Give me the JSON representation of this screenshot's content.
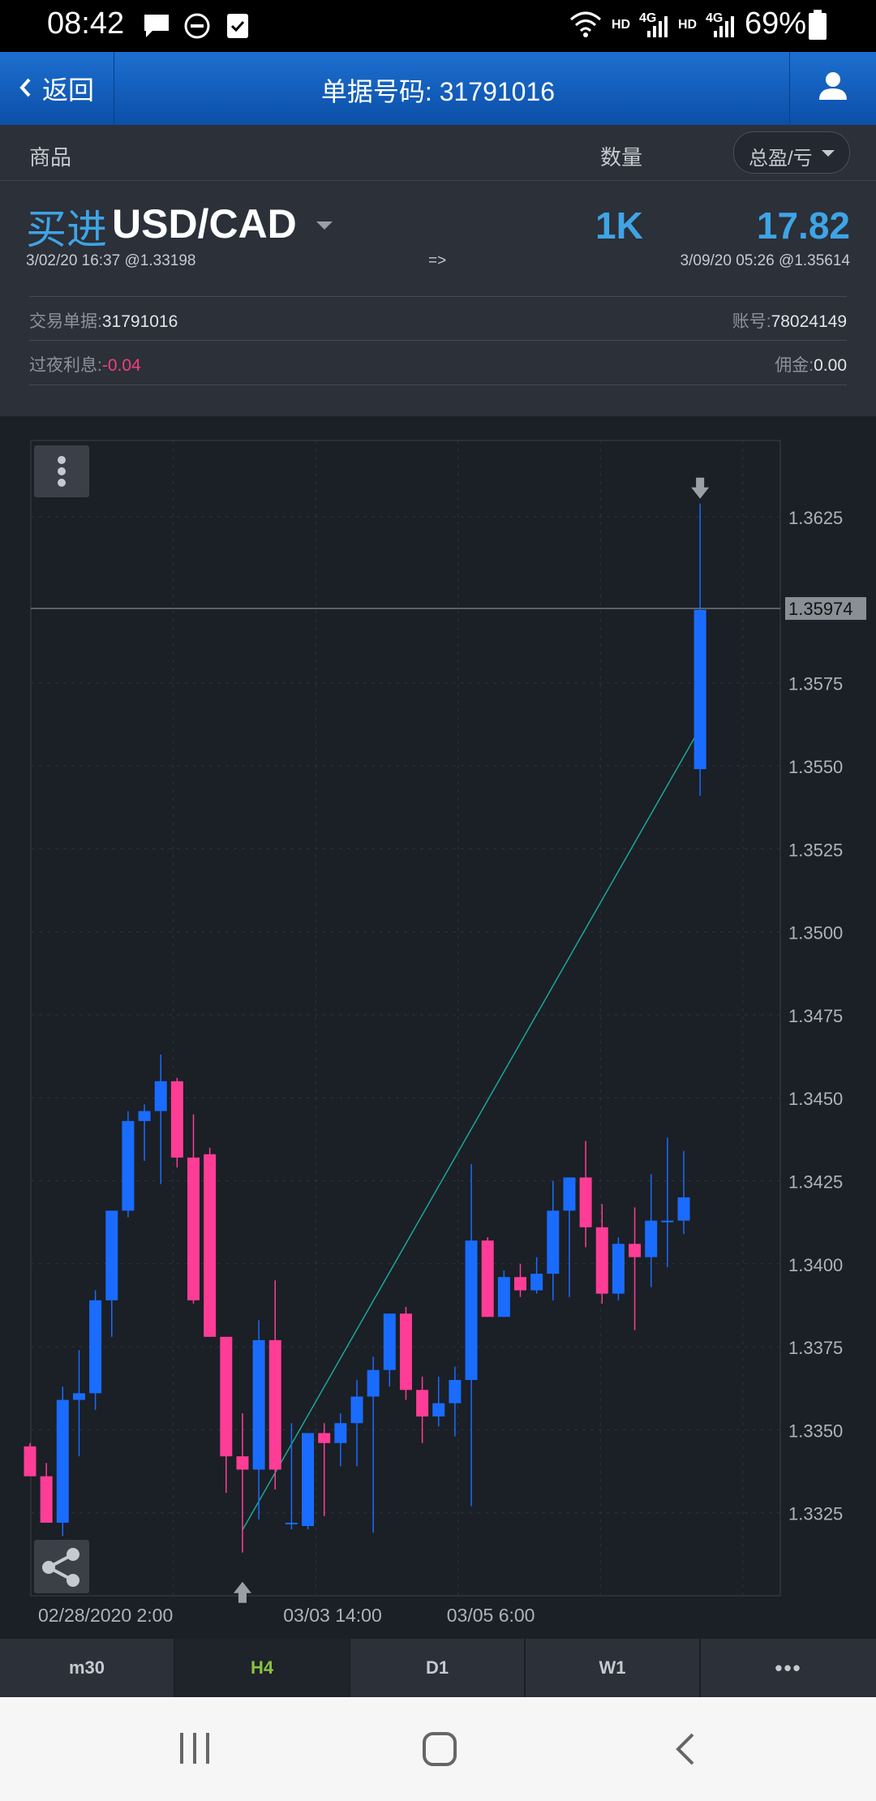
{
  "status_bar": {
    "time": "08:42",
    "net1": "HD",
    "net1_type": "4G",
    "net2": "HD",
    "net2_type": "4G",
    "battery": "69%"
  },
  "header": {
    "back_label": "返回",
    "title": "单据号码: 31791016",
    "user_icon": "user-icon"
  },
  "columns": {
    "product": "商品",
    "quantity": "数量",
    "pl_select": "总盈/亏"
  },
  "position": {
    "side": "买进",
    "symbol": "USD/CAD",
    "quantity": "1K",
    "pnl": "17.82",
    "open_info": "3/02/20 16:37 @1.33198",
    "arrow": "=>",
    "close_info": "3/09/20 05:26 @1.35614",
    "order_label": "交易单据:",
    "order_value": "31791016",
    "account_label": "账号:",
    "account_value": "78024149",
    "swap_label": "过夜利息:",
    "swap_value": "-0.04",
    "commission_label": "佣金:",
    "commission_value": "0.00"
  },
  "colors": {
    "bull": "#1a6cff",
    "bear": "#ff3d96",
    "accent": "#3fa4e6",
    "active_tf": "#8bc43f"
  },
  "chart_data": {
    "type": "candlestick",
    "symbol": "USD/CAD",
    "timeframe": "H4",
    "ylim": [
      1.33,
      1.3648
    ],
    "y_ticks": [
      "1.3625",
      "1.3575",
      "1.3550",
      "1.3525",
      "1.3500",
      "1.3475",
      "1.3450",
      "1.3425",
      "1.3400",
      "1.3375",
      "1.3350",
      "1.3325"
    ],
    "current_price": "1.35974",
    "x_labels": [
      {
        "index": 0,
        "label": "02/28/2020 2:00"
      },
      {
        "index": 15,
        "label": "03/03 14:00"
      },
      {
        "index": 25,
        "label": "03/05 6:00"
      }
    ],
    "candles": [
      {
        "o": 1.3345,
        "h": 1.3346,
        "l": 1.3336,
        "c": 1.3336
      },
      {
        "o": 1.3336,
        "h": 1.334,
        "l": 1.3322,
        "c": 1.3322
      },
      {
        "o": 1.3322,
        "h": 1.3363,
        "l": 1.3318,
        "c": 1.3359
      },
      {
        "o": 1.3359,
        "h": 1.3374,
        "l": 1.3342,
        "c": 1.3361
      },
      {
        "o": 1.3361,
        "h": 1.3392,
        "l": 1.3356,
        "c": 1.3389
      },
      {
        "o": 1.3389,
        "h": 1.3416,
        "l": 1.3378,
        "c": 1.3416
      },
      {
        "o": 1.3416,
        "h": 1.3446,
        "l": 1.3414,
        "c": 1.3443
      },
      {
        "o": 1.3443,
        "h": 1.3448,
        "l": 1.3431,
        "c": 1.3446
      },
      {
        "o": 1.3446,
        "h": 1.3463,
        "l": 1.3424,
        "c": 1.3455
      },
      {
        "o": 1.3455,
        "h": 1.3456,
        "l": 1.3429,
        "c": 1.3432
      },
      {
        "o": 1.3432,
        "h": 1.3445,
        "l": 1.3388,
        "c": 1.3389
      },
      {
        "o": 1.3433,
        "h": 1.3435,
        "l": 1.3378,
        "c": 1.3378
      },
      {
        "o": 1.3378,
        "h": 1.3378,
        "l": 1.3331,
        "c": 1.3342
      },
      {
        "o": 1.3342,
        "h": 1.3355,
        "l": 1.3313,
        "c": 1.3338
      },
      {
        "o": 1.3338,
        "h": 1.3383,
        "l": 1.3323,
        "c": 1.3377
      },
      {
        "o": 1.3377,
        "h": 1.3395,
        "l": 1.3332,
        "c": 1.3338
      },
      {
        "o": 1.3322,
        "h": 1.3352,
        "l": 1.332,
        "c": 1.3322
      },
      {
        "o": 1.3321,
        "h": 1.3349,
        "l": 1.332,
        "c": 1.3349
      },
      {
        "o": 1.3349,
        "h": 1.3352,
        "l": 1.3324,
        "c": 1.3346
      },
      {
        "o": 1.3346,
        "h": 1.3355,
        "l": 1.3339,
        "c": 1.3352
      },
      {
        "o": 1.3352,
        "h": 1.3365,
        "l": 1.3339,
        "c": 1.336
      },
      {
        "o": 1.336,
        "h": 1.3372,
        "l": 1.3319,
        "c": 1.3368
      },
      {
        "o": 1.3368,
        "h": 1.3385,
        "l": 1.3363,
        "c": 1.3385
      },
      {
        "o": 1.3385,
        "h": 1.3387,
        "l": 1.3359,
        "c": 1.3362
      },
      {
        "o": 1.3362,
        "h": 1.3366,
        "l": 1.3346,
        "c": 1.3354
      },
      {
        "o": 1.3354,
        "h": 1.3366,
        "l": 1.3351,
        "c": 1.3358
      },
      {
        "o": 1.3358,
        "h": 1.3369,
        "l": 1.3348,
        "c": 1.3365
      },
      {
        "o": 1.3365,
        "h": 1.343,
        "l": 1.3327,
        "c": 1.3407
      },
      {
        "o": 1.3407,
        "h": 1.3408,
        "l": 1.3384,
        "c": 1.3384
      },
      {
        "o": 1.3384,
        "h": 1.3398,
        "l": 1.3384,
        "c": 1.3396
      },
      {
        "o": 1.3396,
        "h": 1.34,
        "l": 1.339,
        "c": 1.3392
      },
      {
        "o": 1.3392,
        "h": 1.3402,
        "l": 1.3391,
        "c": 1.3397
      },
      {
        "o": 1.3397,
        "h": 1.3425,
        "l": 1.3389,
        "c": 1.3416
      },
      {
        "o": 1.3416,
        "h": 1.3426,
        "l": 1.339,
        "c": 1.3426
      },
      {
        "o": 1.3426,
        "h": 1.3437,
        "l": 1.3405,
        "c": 1.3411
      },
      {
        "o": 1.3411,
        "h": 1.3418,
        "l": 1.3388,
        "c": 1.3391
      },
      {
        "o": 1.3391,
        "h": 1.3408,
        "l": 1.3389,
        "c": 1.3406
      },
      {
        "o": 1.3406,
        "h": 1.3417,
        "l": 1.338,
        "c": 1.3402
      },
      {
        "o": 1.3402,
        "h": 1.3427,
        "l": 1.3393,
        "c": 1.3413
      },
      {
        "o": 1.3413,
        "h": 1.3438,
        "l": 1.3399,
        "c": 1.3413
      },
      {
        "o": 1.3413,
        "h": 1.3434,
        "l": 1.3409,
        "c": 1.342
      },
      {
        "o": 1.3549,
        "h": 1.3629,
        "l": 1.3541,
        "c": 1.3597
      }
    ],
    "trade_line": {
      "from": {
        "index": 13,
        "price": 1.33198
      },
      "to": {
        "index": 41,
        "price": 1.35614
      }
    },
    "entry_marker": {
      "index": 13,
      "direction": "up"
    },
    "exit_marker": {
      "index": 41,
      "direction": "down"
    }
  },
  "timeframes": [
    {
      "label": "m30",
      "active": false
    },
    {
      "label": "H4",
      "active": true
    },
    {
      "label": "D1",
      "active": false
    },
    {
      "label": "W1",
      "active": false
    },
    {
      "label": "•••",
      "active": false
    }
  ]
}
